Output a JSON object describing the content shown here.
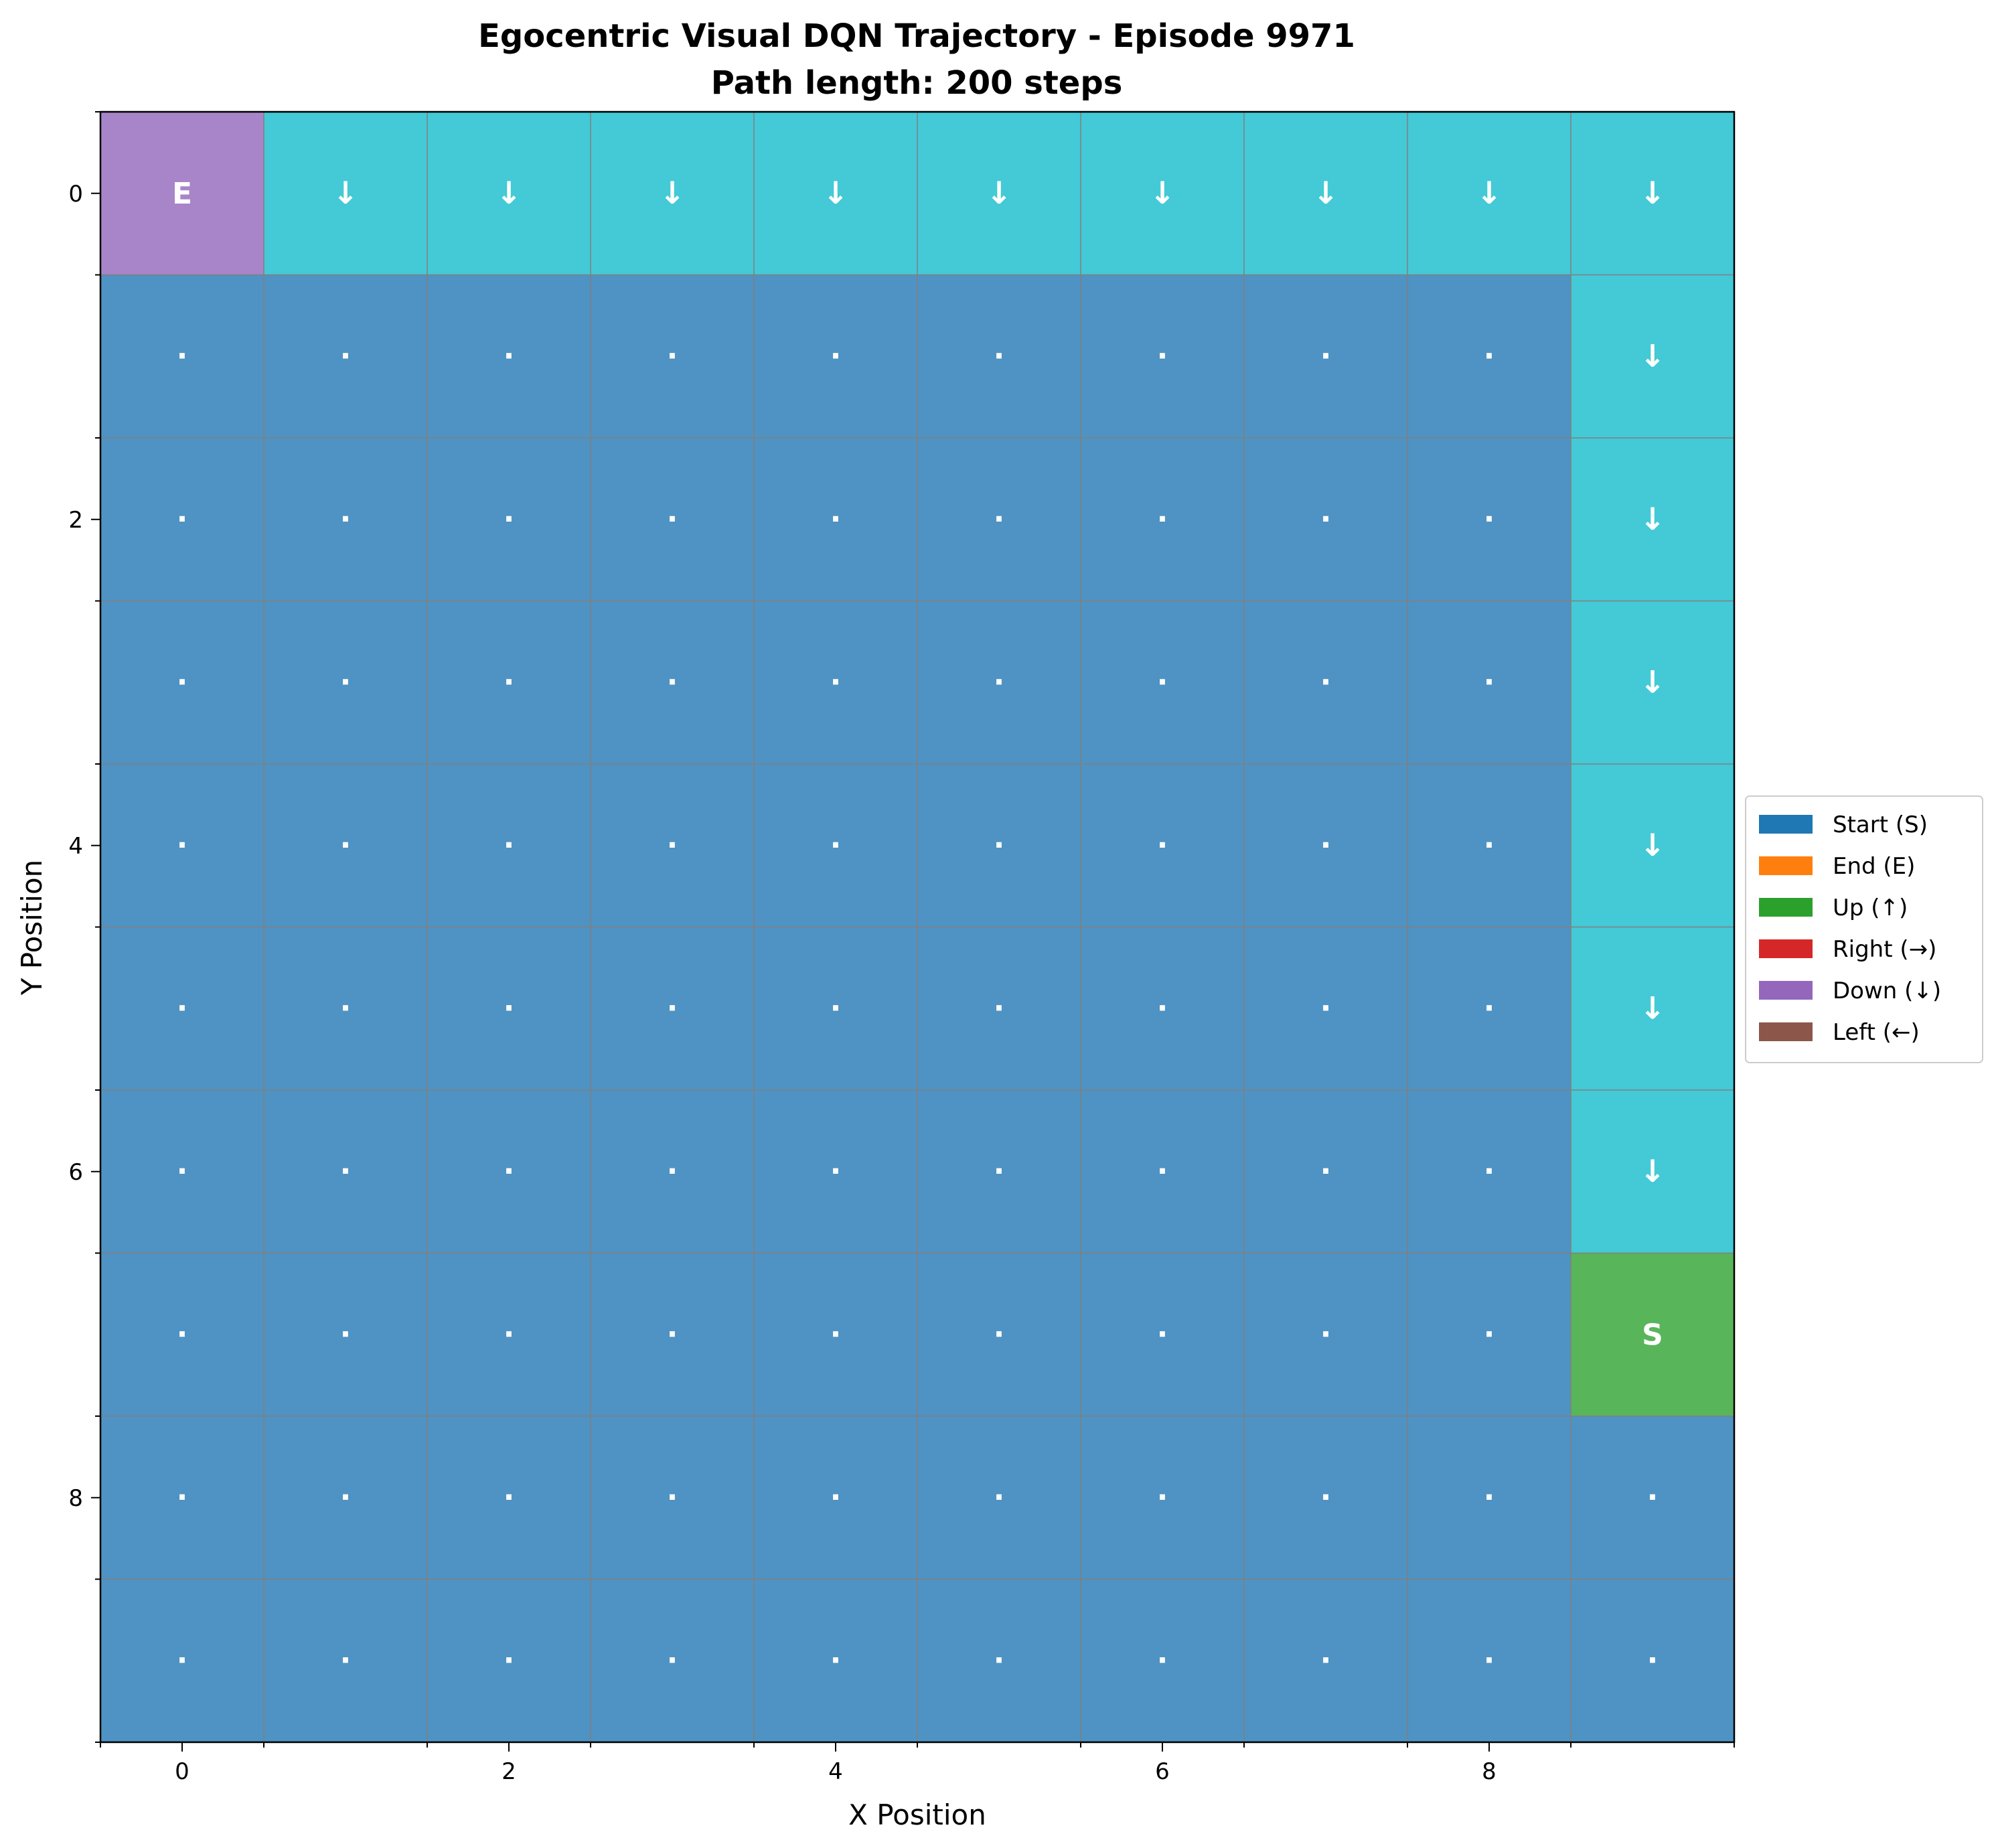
{
  "chart_data": {
    "type": "heatmap",
    "title": "Egocentric Visual DQN Trajectory - Episode 9971",
    "subtitle": "Path length: 200 steps",
    "xlabel": "X Position",
    "ylabel": "Y Position",
    "xlim": [
      -0.5,
      9.5
    ],
    "ylim": [
      9.5,
      -0.5
    ],
    "x_ticks": [
      "0",
      "2",
      "4",
      "6",
      "8"
    ],
    "y_ticks": [
      "0",
      "2",
      "4",
      "6",
      "8"
    ],
    "grid": true,
    "legend_position": "right",
    "legend": [
      {
        "label": "Start (S)",
        "color": "#1f77b4"
      },
      {
        "label": "End (E)",
        "color": "#ff7f0e"
      },
      {
        "label": "Up (↑)",
        "color": "#2ca02c"
      },
      {
        "label": "Right (→)",
        "color": "#d62728"
      },
      {
        "label": "Down (↓)",
        "color": "#9467bd"
      },
      {
        "label": "Left (←)",
        "color": "#8c564b"
      }
    ],
    "cell_colors": {
      "empty": "#4e93c3",
      "path": "#44c9d6",
      "start": "#59b55a",
      "end": "#a885c9"
    },
    "grid_rows": [
      "EDDDDDDDDD",
      ".........D",
      ".........D",
      ".........D",
      ".........D",
      ".........D",
      ".........D",
      ".........S",
      "..........",
      ".........."
    ],
    "cell_symbols": {
      "E": "E",
      "S": "S",
      "D": "↓",
      ".": "·"
    }
  }
}
